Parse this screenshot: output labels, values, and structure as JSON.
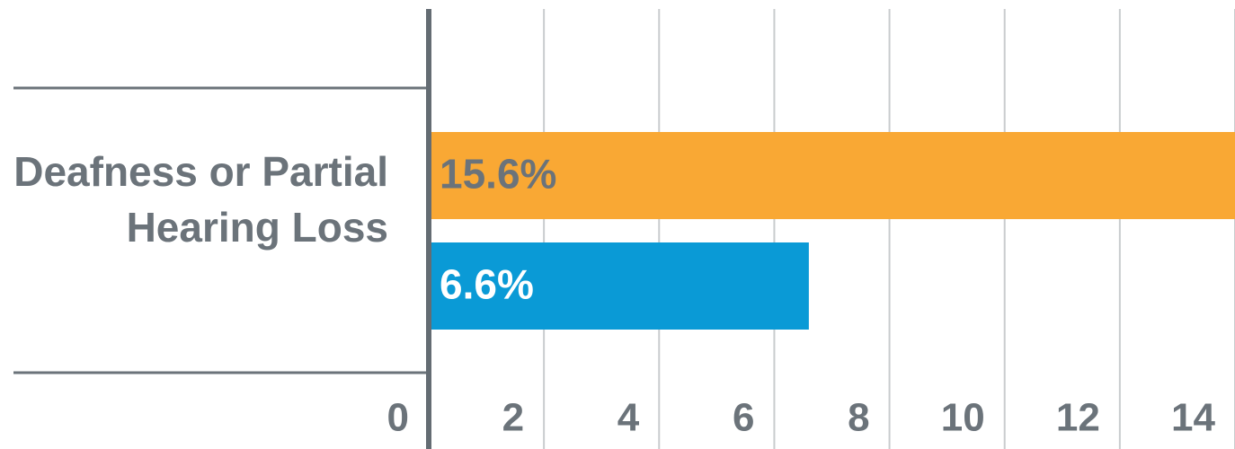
{
  "chart_data": {
    "type": "barh",
    "categories": [
      "Deafness or Partial Hearing Loss"
    ],
    "series": [
      {
        "color": "#f9a834",
        "values": [
          15.6
        ],
        "value_labels": [
          "15.6%"
        ],
        "label_color": "#6b737a"
      },
      {
        "color": "#0a9ad6",
        "values": [
          6.6
        ],
        "value_labels": [
          "6.6%"
        ],
        "label_color": "#ffffff"
      }
    ],
    "xlim": [
      0,
      14
    ],
    "xticks": [
      0,
      2,
      4,
      6,
      8,
      10,
      12,
      14
    ],
    "grid": true
  }
}
